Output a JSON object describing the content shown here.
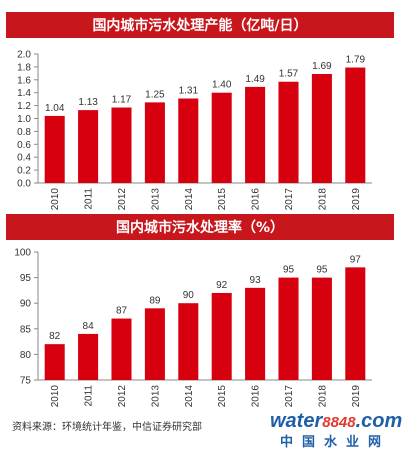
{
  "chart_data": [
    {
      "type": "bar",
      "title": "国内城市污水处理产能（亿吨/日）",
      "categories": [
        "2010",
        "2011",
        "2012",
        "2013",
        "2014",
        "2015",
        "2016",
        "2017",
        "2018",
        "2019"
      ],
      "values": [
        1.04,
        1.13,
        1.17,
        1.25,
        1.31,
        1.4,
        1.49,
        1.57,
        1.69,
        1.79
      ],
      "value_labels": [
        "1.04",
        "1.13",
        "1.17",
        "1.25",
        "1.31",
        "1.40",
        "1.49",
        "1.57",
        "1.69",
        "1.79"
      ],
      "ylim": [
        0,
        2.0
      ],
      "yticks": [
        "0.0",
        "0.2",
        "0.4",
        "0.6",
        "0.8",
        "1.0",
        "1.2",
        "1.4",
        "1.6",
        "1.8",
        "2.0"
      ],
      "bar_color": "#d7000f",
      "grid": false
    },
    {
      "type": "bar",
      "title": "国内城市污水处理率（%）",
      "categories": [
        "2010",
        "2011",
        "2012",
        "2013",
        "2014",
        "2015",
        "2016",
        "2017",
        "2018",
        "2019"
      ],
      "values": [
        82,
        84,
        87,
        89,
        90,
        92,
        93,
        95,
        95,
        97
      ],
      "value_labels": [
        "82",
        "84",
        "87",
        "89",
        "90",
        "92",
        "93",
        "95",
        "95",
        "97"
      ],
      "ylim": [
        75,
        100
      ],
      "yticks": [
        "75",
        "80",
        "85",
        "90",
        "95",
        "100"
      ],
      "bar_color": "#d7000f",
      "grid": false
    }
  ],
  "source": "资料来源：环境统计年鉴，中信证券研究部",
  "watermark": {
    "brand_main": "water",
    "brand_num": "8848",
    "brand_tld": ".com",
    "tagline": "中国水业网"
  },
  "colors": {
    "banner": "#c8161d",
    "bar": "#d7000f",
    "axis": "#888888"
  }
}
